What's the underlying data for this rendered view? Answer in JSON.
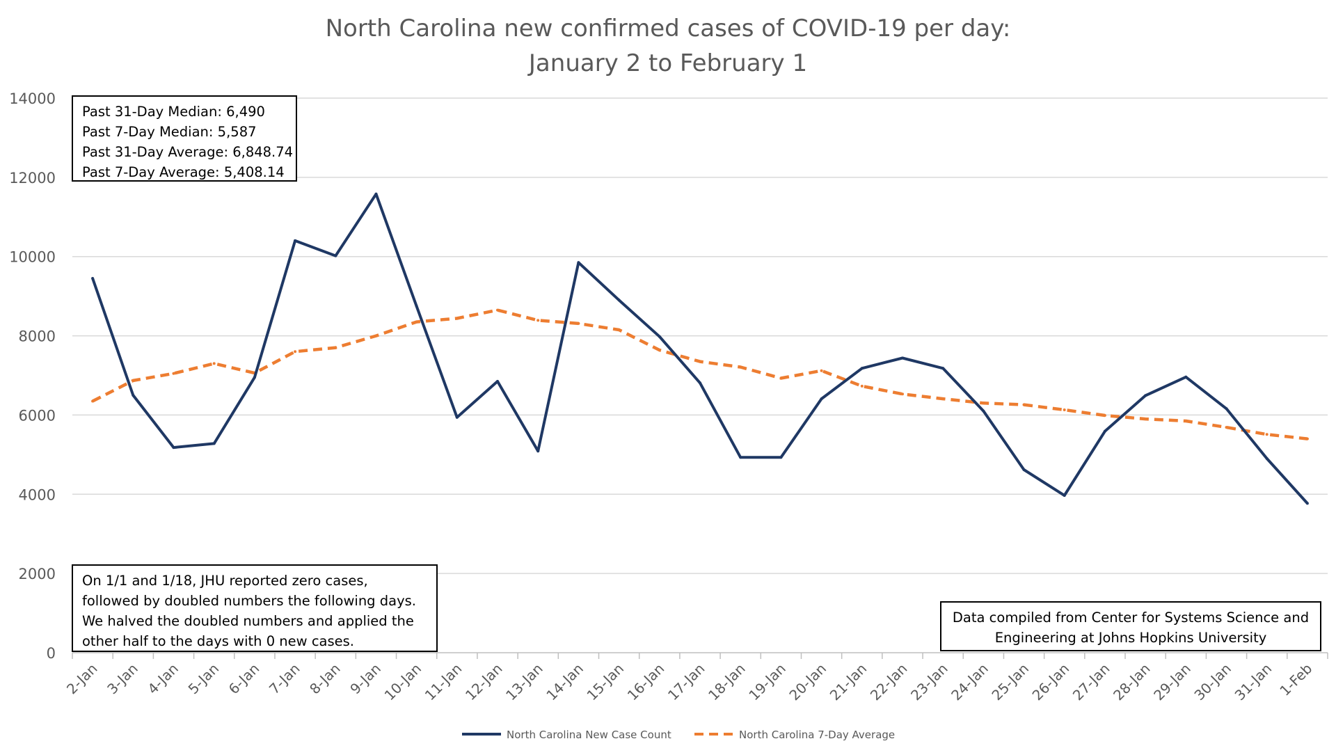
{
  "chart_data": {
    "type": "line",
    "title_line1": "North Carolina new confirmed cases of COVID-19 per day:",
    "title_line2": "January 2 to February 1",
    "xlabel": "",
    "ylabel": "",
    "ylim": [
      0,
      14000
    ],
    "yticks": [
      0,
      2000,
      4000,
      6000,
      8000,
      10000,
      12000,
      14000
    ],
    "grid": true,
    "legend_position": "bottom-center",
    "categories": [
      "2-Jan",
      "3-Jan",
      "4-Jan",
      "5-Jan",
      "6-Jan",
      "7-Jan",
      "8-Jan",
      "9-Jan",
      "10-Jan",
      "11-Jan",
      "12-Jan",
      "13-Jan",
      "14-Jan",
      "15-Jan",
      "16-Jan",
      "17-Jan",
      "18-Jan",
      "19-Jan",
      "20-Jan",
      "21-Jan",
      "22-Jan",
      "23-Jan",
      "24-Jan",
      "25-Jan",
      "26-Jan",
      "27-Jan",
      "28-Jan",
      "29-Jan",
      "30-Jan",
      "31-Jan",
      "1-Feb"
    ],
    "series": [
      {
        "name": "North Carolina New Case Count",
        "color": "#1f3864",
        "dash": false,
        "values": [
          9450,
          6500,
          5180,
          5280,
          6950,
          10400,
          10020,
          11580,
          8750,
          5940,
          6850,
          5090,
          9850,
          8900,
          7980,
          6810,
          4930,
          4930,
          6410,
          7180,
          7440,
          7180,
          6100,
          4620,
          3970,
          5590,
          6490,
          6960,
          6160,
          4900,
          3770
        ]
      },
      {
        "name": "North Carolina 7-Day Average",
        "color": "#ed7d31",
        "dash": true,
        "values": [
          6350,
          6870,
          7050,
          7300,
          7060,
          7600,
          7700,
          8000,
          8350,
          8440,
          8650,
          8390,
          8310,
          8150,
          7640,
          7350,
          7210,
          6930,
          7120,
          6730,
          6530,
          6410,
          6300,
          6260,
          6130,
          5990,
          5900,
          5850,
          5690,
          5510,
          5400
        ]
      }
    ],
    "annotations": {
      "stats_box": [
        "Past 31-Day Median: 6,490",
        "Past 7-Day Median: 5,587",
        "Past 31-Day Average: 6,848.74",
        "Past 7-Day Average: 5,408.14"
      ],
      "note_box": [
        "On 1/1 and 1/18, JHU reported zero cases,",
        "followed by doubled numbers the following days.",
        "We halved the doubled numbers and applied the",
        "other half to the days with 0 new cases."
      ],
      "source_box": [
        "Data compiled from Center for Systems Science and",
        "Engineering at Johns Hopkins University"
      ]
    }
  }
}
